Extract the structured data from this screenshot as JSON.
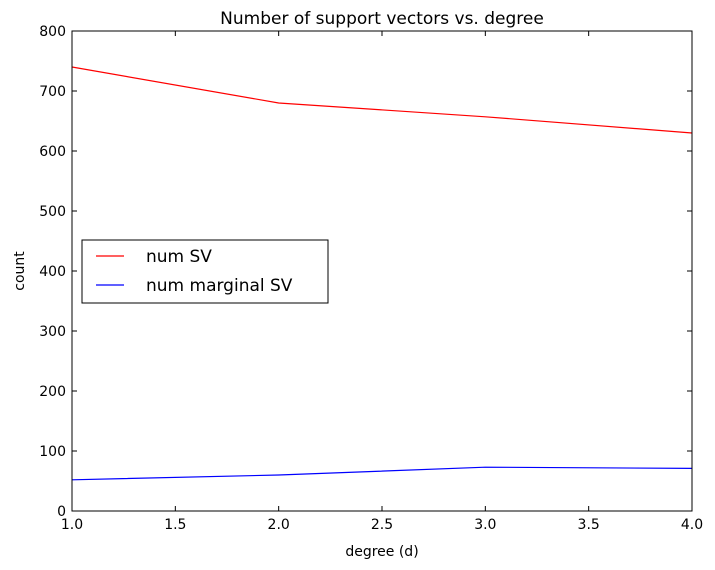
{
  "chart_data": {
    "type": "line",
    "title": "Number of support vectors vs. degree",
    "xlabel": "degree (d)",
    "ylabel": "count",
    "x": [
      1,
      2,
      3,
      4
    ],
    "xlim": [
      1.0,
      4.0
    ],
    "ylim": [
      0,
      800
    ],
    "xticks": [
      "1.0",
      "1.5",
      "2.0",
      "2.5",
      "3.0",
      "3.5",
      "4.0"
    ],
    "yticks": [
      "0",
      "100",
      "200",
      "300",
      "400",
      "500",
      "600",
      "700",
      "800"
    ],
    "grid": false,
    "legend_placement": "center-left",
    "series": [
      {
        "name": "num SV",
        "color": "#ff0000",
        "values": [
          740,
          680,
          657,
          630
        ]
      },
      {
        "name": "num marginal SV",
        "color": "#0000ff",
        "values": [
          52,
          60,
          73,
          71
        ]
      }
    ]
  }
}
